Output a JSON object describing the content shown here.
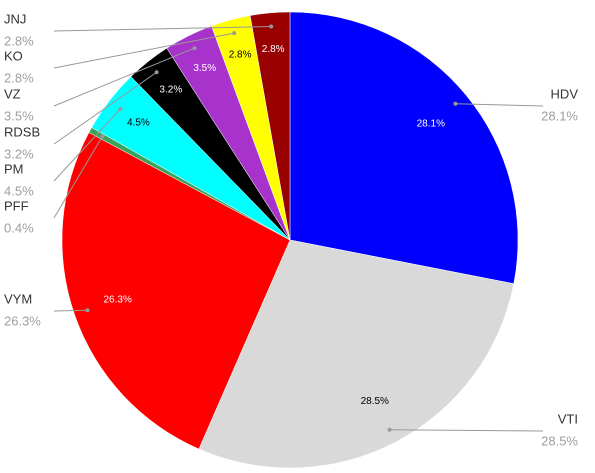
{
  "chart_data": {
    "type": "pie",
    "categories": [
      "HDV",
      "VTI",
      "VYM",
      "PFF",
      "PM",
      "RDSB",
      "VZ",
      "KO",
      "JNJ"
    ],
    "values": [
      28.1,
      28.5,
      26.3,
      0.4,
      4.5,
      3.2,
      3.5,
      2.8,
      2.8
    ],
    "value_labels": [
      "28.1%",
      "28.5%",
      "26.3%",
      "0.4%",
      "4.5%",
      "3.2%",
      "3.5%",
      "2.8%",
      "2.8%"
    ],
    "colors": [
      "#0000ff",
      "#d9d9d9",
      "#ff0000",
      "#38a35a",
      "#00ffff",
      "#000000",
      "#a733cc",
      "#ffff00",
      "#990000"
    ]
  }
}
